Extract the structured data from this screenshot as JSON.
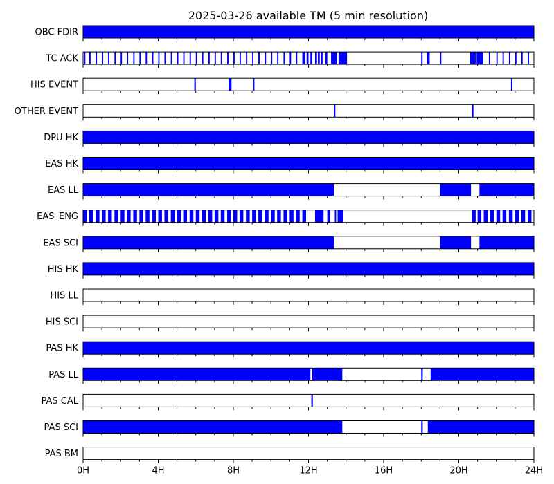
{
  "chart_data": {
    "type": "timeline",
    "title": "2025-03-26 available TM (5 min resolution)",
    "x_unit": "hours",
    "xlim": [
      0,
      24
    ],
    "x_ticks": [
      0,
      4,
      8,
      12,
      16,
      20,
      24
    ],
    "x_tick_labels": [
      "0H",
      "4H",
      "8H",
      "12H",
      "16H",
      "20H",
      "24H"
    ],
    "minor_tick_step": 1,
    "bar_color": "#0000ff",
    "rows": [
      {
        "label": "OBC FDIR",
        "intervals": [
          [
            0,
            24
          ]
        ]
      },
      {
        "label": "TC ACK",
        "intervals": [
          [
            0.05,
            0.12
          ],
          [
            0.33,
            0.4
          ],
          [
            0.67,
            0.74
          ],
          [
            1.0,
            1.07
          ],
          [
            1.33,
            1.4
          ],
          [
            1.67,
            1.74
          ],
          [
            2.0,
            2.07
          ],
          [
            2.33,
            2.4
          ],
          [
            2.67,
            2.74
          ],
          [
            3.0,
            3.07
          ],
          [
            3.33,
            3.4
          ],
          [
            3.67,
            3.74
          ],
          [
            4.0,
            4.07
          ],
          [
            4.33,
            4.4
          ],
          [
            4.67,
            4.74
          ],
          [
            5.0,
            5.07
          ],
          [
            5.33,
            5.4
          ],
          [
            5.67,
            5.74
          ],
          [
            6.0,
            6.07
          ],
          [
            6.33,
            6.4
          ],
          [
            6.67,
            6.74
          ],
          [
            7.0,
            7.07
          ],
          [
            7.33,
            7.4
          ],
          [
            7.67,
            7.74
          ],
          [
            8.0,
            8.07
          ],
          [
            8.33,
            8.4
          ],
          [
            8.67,
            8.74
          ],
          [
            9.0,
            9.07
          ],
          [
            9.33,
            9.4
          ],
          [
            9.67,
            9.74
          ],
          [
            10.0,
            10.07
          ],
          [
            10.33,
            10.4
          ],
          [
            10.67,
            10.74
          ],
          [
            11.0,
            11.07
          ],
          [
            11.33,
            11.4
          ],
          [
            11.67,
            11.83
          ],
          [
            11.9,
            12.0
          ],
          [
            12.1,
            12.2
          ],
          [
            12.35,
            12.45
          ],
          [
            12.5,
            12.6
          ],
          [
            12.65,
            12.75
          ],
          [
            12.9,
            13.0
          ],
          [
            13.2,
            13.5
          ],
          [
            13.6,
            14.05
          ],
          [
            18.0,
            18.07
          ],
          [
            18.3,
            18.45
          ],
          [
            19.0,
            19.07
          ],
          [
            20.6,
            20.9
          ],
          [
            20.95,
            21.3
          ],
          [
            21.6,
            21.67
          ],
          [
            22.0,
            22.07
          ],
          [
            22.33,
            22.4
          ],
          [
            22.67,
            22.74
          ],
          [
            23.0,
            23.07
          ],
          [
            23.33,
            23.4
          ],
          [
            23.67,
            23.74
          ]
        ]
      },
      {
        "label": "HIS EVENT",
        "intervals": [
          [
            5.92,
            6.0
          ],
          [
            7.75,
            7.9
          ],
          [
            9.05,
            9.12
          ],
          [
            22.78,
            22.85
          ]
        ]
      },
      {
        "label": "OTHER EVENT",
        "intervals": [
          [
            13.35,
            13.43
          ],
          [
            20.7,
            20.78
          ]
        ]
      },
      {
        "label": "DPU HK",
        "intervals": [
          [
            0,
            24
          ]
        ]
      },
      {
        "label": "EAS HK",
        "intervals": [
          [
            0,
            24
          ]
        ]
      },
      {
        "label": "EAS LL",
        "intervals": [
          [
            0,
            13.35
          ],
          [
            19.0,
            20.65
          ],
          [
            21.1,
            24
          ]
        ]
      },
      {
        "label": "EAS_ENG",
        "intervals": [
          [
            0.0,
            0.2
          ],
          [
            0.33,
            0.53
          ],
          [
            0.67,
            0.87
          ],
          [
            1.0,
            1.2
          ],
          [
            1.33,
            1.53
          ],
          [
            1.67,
            1.87
          ],
          [
            2.0,
            2.2
          ],
          [
            2.33,
            2.53
          ],
          [
            2.67,
            2.87
          ],
          [
            3.0,
            3.2
          ],
          [
            3.33,
            3.53
          ],
          [
            3.67,
            3.87
          ],
          [
            4.0,
            4.2
          ],
          [
            4.33,
            4.53
          ],
          [
            4.67,
            4.87
          ],
          [
            5.0,
            5.2
          ],
          [
            5.33,
            5.53
          ],
          [
            5.67,
            5.87
          ],
          [
            6.0,
            6.2
          ],
          [
            6.33,
            6.53
          ],
          [
            6.67,
            6.87
          ],
          [
            7.0,
            7.2
          ],
          [
            7.33,
            7.53
          ],
          [
            7.67,
            7.87
          ],
          [
            8.0,
            8.2
          ],
          [
            8.33,
            8.53
          ],
          [
            8.67,
            8.87
          ],
          [
            9.0,
            9.2
          ],
          [
            9.33,
            9.53
          ],
          [
            9.67,
            9.87
          ],
          [
            10.0,
            10.2
          ],
          [
            10.33,
            10.53
          ],
          [
            10.67,
            10.87
          ],
          [
            11.0,
            11.2
          ],
          [
            11.33,
            11.53
          ],
          [
            11.67,
            11.87
          ],
          [
            12.35,
            12.8
          ],
          [
            13.0,
            13.15
          ],
          [
            13.4,
            13.47
          ],
          [
            13.55,
            13.85
          ],
          [
            20.7,
            20.9
          ],
          [
            21.0,
            21.2
          ],
          [
            21.33,
            21.53
          ],
          [
            21.67,
            21.87
          ],
          [
            22.0,
            22.2
          ],
          [
            22.33,
            22.53
          ],
          [
            22.67,
            22.87
          ],
          [
            23.0,
            23.2
          ],
          [
            23.33,
            23.53
          ],
          [
            23.67,
            23.87
          ]
        ]
      },
      {
        "label": "EAS SCI",
        "intervals": [
          [
            0,
            13.35
          ],
          [
            19.0,
            20.65
          ],
          [
            21.1,
            24
          ]
        ]
      },
      {
        "label": "HIS HK",
        "intervals": [
          [
            0,
            24
          ]
        ]
      },
      {
        "label": "HIS LL",
        "intervals": []
      },
      {
        "label": "HIS SCI",
        "intervals": []
      },
      {
        "label": "PAS HK",
        "intervals": [
          [
            0,
            24
          ]
        ]
      },
      {
        "label": "PAS LL",
        "intervals": [
          [
            0,
            12.1
          ],
          [
            12.2,
            13.8
          ],
          [
            18.0,
            18.08
          ],
          [
            18.5,
            24
          ]
        ]
      },
      {
        "label": "PAS CAL",
        "intervals": [
          [
            12.15,
            12.23
          ]
        ]
      },
      {
        "label": "PAS SCI",
        "intervals": [
          [
            0,
            13.8
          ],
          [
            18.0,
            18.08
          ],
          [
            18.35,
            24
          ]
        ]
      },
      {
        "label": "PAS BM",
        "intervals": []
      }
    ]
  }
}
